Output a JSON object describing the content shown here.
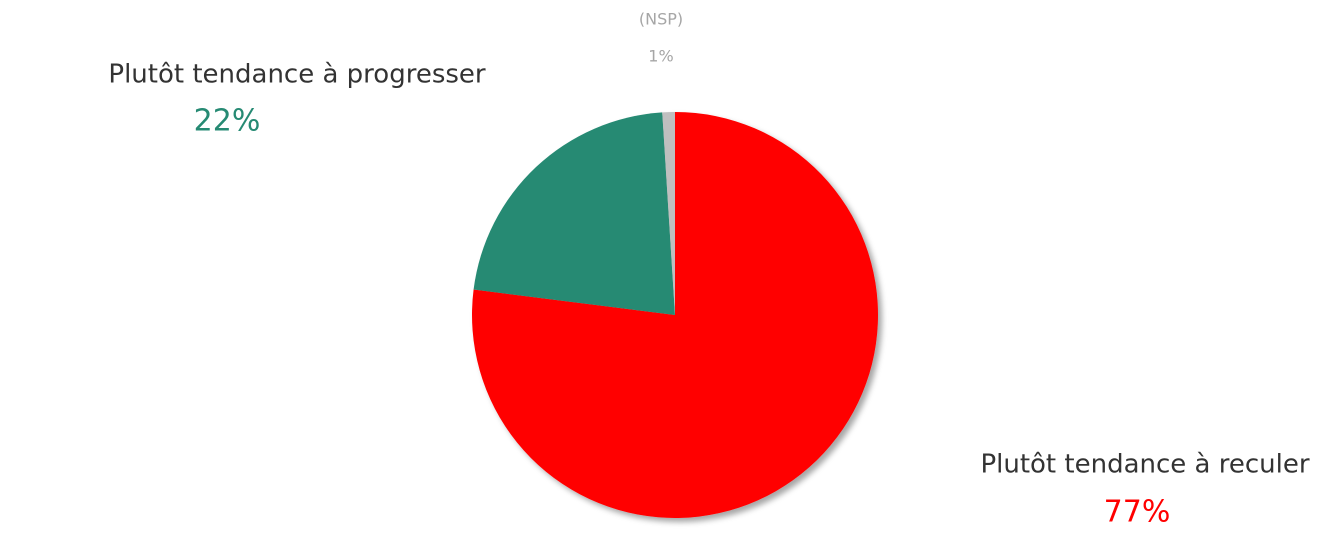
{
  "chart_data": {
    "type": "pie",
    "categories": [
      "Plutôt tendance à reculer",
      "Plutôt tendance à progresser",
      "(NSP)"
    ],
    "values": [
      77,
      22,
      1
    ],
    "value_labels": [
      "77%",
      "22%",
      "1%"
    ],
    "colors": [
      "#ff0000",
      "#268a73",
      "#bfbfbf"
    ]
  }
}
